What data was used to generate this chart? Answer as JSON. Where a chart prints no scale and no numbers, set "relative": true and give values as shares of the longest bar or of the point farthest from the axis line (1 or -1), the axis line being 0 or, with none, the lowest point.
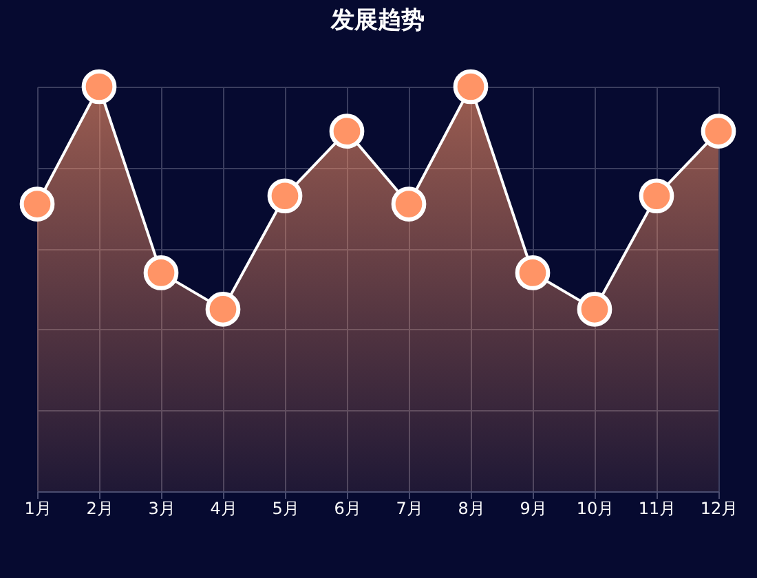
{
  "chart_data": {
    "type": "area",
    "title": "发展趋势",
    "relative": true,
    "grid": true,
    "marker": "circle",
    "line_style": "solid",
    "categories": [
      "1月",
      "2月",
      "3月",
      "4月",
      "5月",
      "6月",
      "7月",
      "8月",
      "9月",
      "10月",
      "11月",
      "12月"
    ],
    "series": [
      {
        "color": "#ff9466",
        "values": [
          0.71,
          1,
          0.54,
          0.45,
          0.73,
          0.89,
          0.71,
          1,
          0.54,
          0.45,
          0.73,
          0.89
        ]
      }
    ]
  }
}
